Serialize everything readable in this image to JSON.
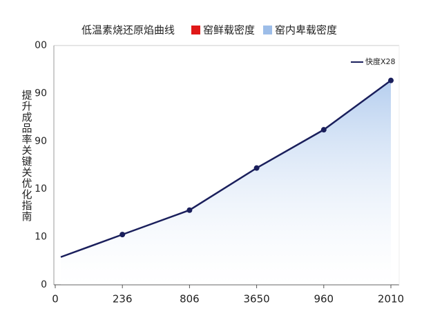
{
  "chart_data": {
    "type": "line",
    "title": "低温素烧还原焰曲线",
    "legend_items": [
      {
        "label": "窑鲜载密度",
        "color": "#e01818"
      },
      {
        "label": "窑内卑载密度",
        "color": "#9dbde8"
      }
    ],
    "y_label": "提升成品率关键关优化指南",
    "categories": [
      "0",
      "236",
      "806",
      "3650",
      "960",
      "2010"
    ],
    "series": [
      {
        "name": "快度X28",
        "color": "#1a1f5c",
        "fill": "#a9c6ec",
        "values": [
          0.58,
          1.05,
          1.56,
          2.44,
          3.24,
          4.27
        ]
      }
    ],
    "ylim": [
      0,
      5
    ],
    "yticks": [
      {
        "value": 0,
        "label": "0"
      },
      {
        "value": 1,
        "label": "10"
      },
      {
        "value": 2,
        "label": "10"
      },
      {
        "value": 3,
        "label": "90"
      },
      {
        "value": 4,
        "label": "90"
      },
      {
        "value": 5,
        "label": "00"
      }
    ]
  }
}
